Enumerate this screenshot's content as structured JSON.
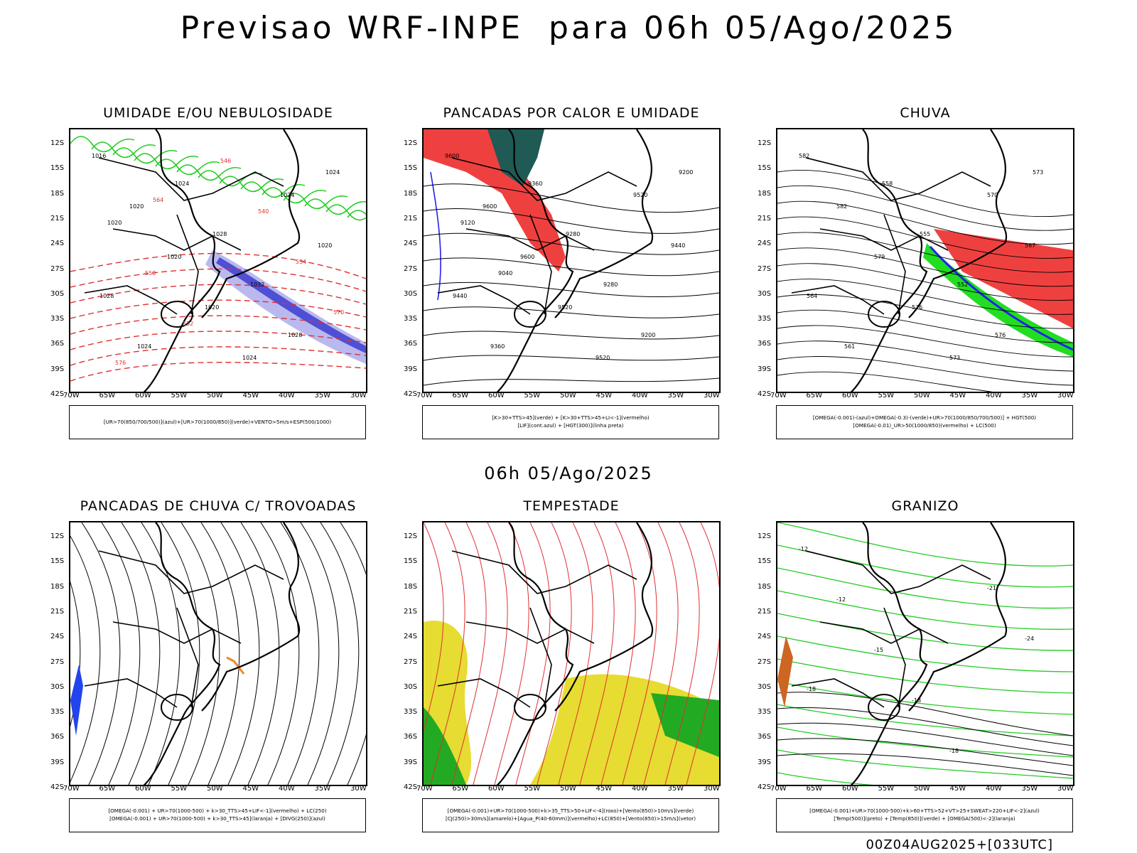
{
  "title": "Previsao WRF-INPE  para 06h 05/Ago/2025",
  "mid_date": "06h 05/Ago/2025",
  "footer_id": "00Z04AUG2025+[033UTC]",
  "lat_labels": [
    "12S",
    "15S",
    "18S",
    "21S",
    "24S",
    "27S",
    "30S",
    "33S",
    "36S",
    "39S",
    "42S"
  ],
  "lon_labels": [
    "70W",
    "65W",
    "60W",
    "55W",
    "50W",
    "45W",
    "40W",
    "35W",
    "30W"
  ],
  "panels": [
    {
      "title": "UMIDADE E/OU NEBULOSIDADE",
      "legend": [
        "[UR>70(850/700/500)](azul)+[UR>70(1000/850)](verde)+VENTO>5m/s+ESP(500/1000)"
      ],
      "labels": [
        "1016",
        "1020",
        "1020",
        "1020",
        "1024",
        "1024",
        "1020",
        "1028",
        "1024",
        "1024",
        "1028",
        "1032",
        "1028",
        "1024",
        "1020",
        "558",
        "552",
        "546",
        "540",
        "534",
        "570",
        "576",
        "564"
      ]
    },
    {
      "title": "PANCADAS POR CALOR E UMIDADE",
      "legend": [
        "[K>30+TTS>45](verde) + [K>30+TTS>45+LI<-1](vermelho)",
        "[LIF](cont.azul) + [HGT(300)](linha preta)"
      ],
      "labels": [
        "9600",
        "9600",
        "9600",
        "9520",
        "9520",
        "9520",
        "9440",
        "9440",
        "9360",
        "9360",
        "9280",
        "9280",
        "9200",
        "9200",
        "9120",
        "9040"
      ]
    },
    {
      "title": "CHUVA",
      "legend": [
        "[OMEGA(-0.001)-(azul)+OMEGA(-0.3)-(verde)+UR>70(1000/850/700/500)] + HGT(500)",
        "[OMEGA(-0.01)_UR>50(1000/850)(vermelho) + LC(500)"
      ],
      "labels": [
        "582",
        "582",
        "579",
        "576",
        "573",
        "570",
        "567",
        "564",
        "561",
        "558",
        "555",
        "552",
        "576",
        "573"
      ]
    },
    {
      "title": "PANCADAS DE CHUVA C/ TROVOADAS",
      "legend": [
        "[OMEGA(-0.001) + UR>70(1000-500) + k>30_TTS>45+LIF<-1](vermelho) + LC(250)",
        "[OMEGA(-0.001) + UR>70(1000-500) + k>30_TTS>45](laranja) + [DIVG(250)](azul)"
      ],
      "labels": []
    },
    {
      "title": "TEMPESTADE",
      "legend": [
        "[OMEGA(-0.001)+UR>70(1000-500)+k>35_TTS>50+LIF<-4](roxo)+[Vento(850)>10m/s](verde)",
        "[CJ(250)>30m/s](amarelo)+[Agua_P(40-60mm)](vermelho)+LC(850)+[Vento(850)>15m/s](vetor)"
      ],
      "labels": []
    },
    {
      "title": "GRANIZO",
      "legend": [
        "[OMEGA(-0.001)+UR>70(1000-500)+k>60+TTS>52+VT>25+SWEAT>220+LIF<-2](azul)",
        "[Temp(500)](preto) + [Temp(850)](verde) + [OMEGA(500)<-2](laranja)"
      ],
      "labels": [
        "-12",
        "-12",
        "-15",
        "-18",
        "-18",
        "-21",
        "-24",
        "-18"
      ]
    }
  ]
}
